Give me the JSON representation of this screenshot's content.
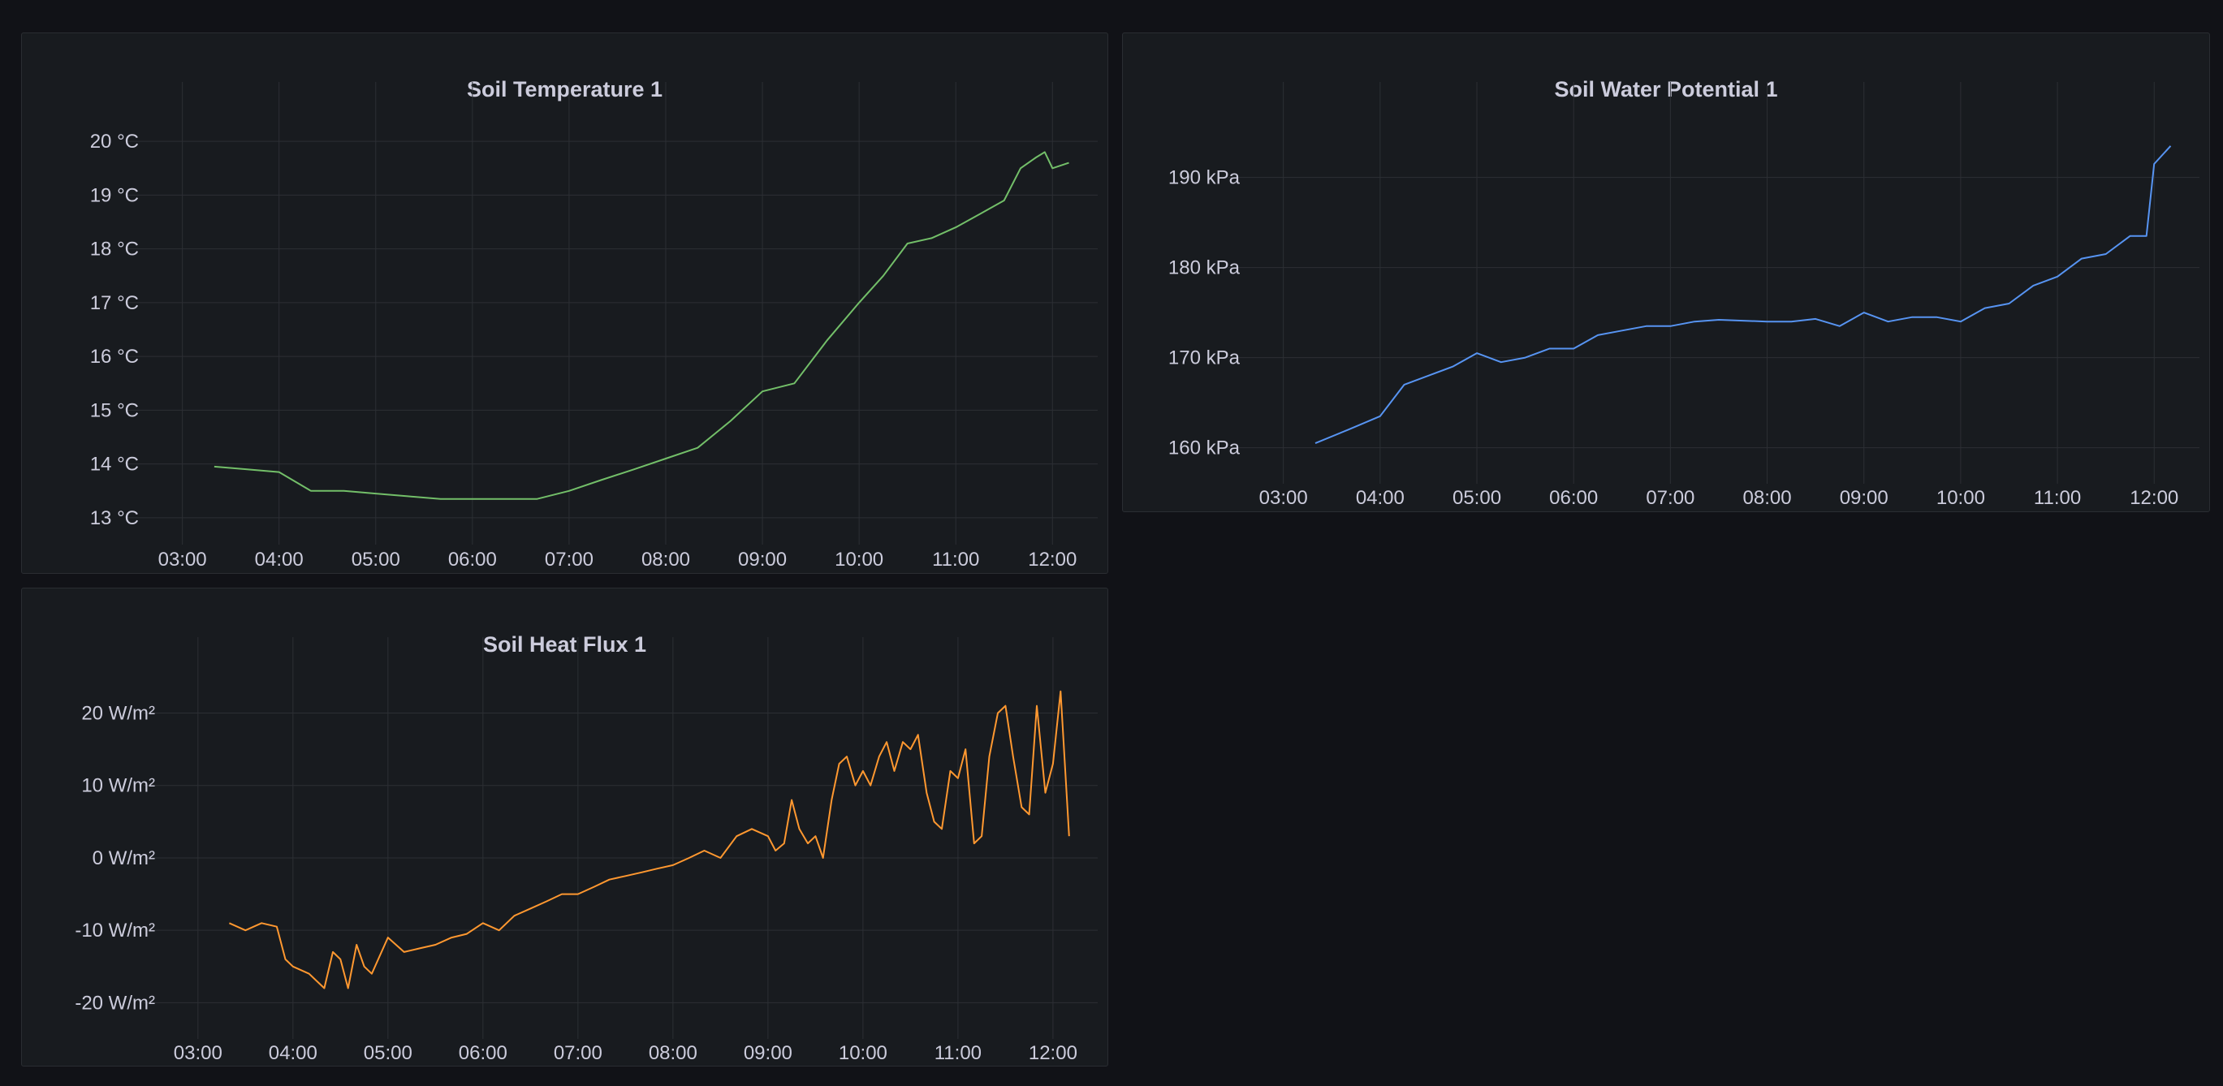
{
  "dashboard": {
    "panels": [
      {
        "id": "temp",
        "title": "Soil Temperature 1"
      },
      {
        "id": "water",
        "title": "Soil Water Potential 1"
      },
      {
        "id": "flux",
        "title": "Soil Heat Flux 1"
      }
    ]
  },
  "chart_data": [
    {
      "type": "line",
      "title": "Soil Temperature 1",
      "unit": "°C",
      "x_ticks": [
        "03:00",
        "04:00",
        "05:00",
        "06:00",
        "07:00",
        "08:00",
        "09:00",
        "10:00",
        "11:00",
        "12:00"
      ],
      "y_ticks": [
        "13 °C",
        "14 °C",
        "15 °C",
        "16 °C",
        "17 °C",
        "18 °C",
        "19 °C",
        "20 °C"
      ],
      "xlim": [
        2.6,
        12.3
      ],
      "ylim": [
        12.5,
        20.5
      ],
      "grid": true,
      "color": "#73bf69",
      "series": [
        {
          "x_hours": [
            3.33,
            3.67,
            4.0,
            4.33,
            4.67,
            5.0,
            5.33,
            5.67,
            6.0,
            6.33,
            6.67,
            7.0,
            7.33,
            7.67,
            8.0,
            8.33,
            8.67,
            9.0,
            9.33,
            9.67,
            10.0,
            10.25,
            10.5,
            10.75,
            11.0,
            11.25,
            11.5,
            11.67,
            11.83,
            11.92,
            12.0,
            12.17
          ],
          "values": [
            13.95,
            13.9,
            13.85,
            13.5,
            13.5,
            13.45,
            13.4,
            13.35,
            13.35,
            13.35,
            13.35,
            13.5,
            13.7,
            13.9,
            14.1,
            14.3,
            14.8,
            15.35,
            15.5,
            16.3,
            17.0,
            17.5,
            18.1,
            18.2,
            18.4,
            18.65,
            18.9,
            19.5,
            19.7,
            19.8,
            19.5,
            19.6
          ]
        }
      ]
    },
    {
      "type": "line",
      "title": "Soil Water Potential 1",
      "unit": "kPa",
      "x_ticks": [
        "03:00",
        "04:00",
        "05:00",
        "06:00",
        "07:00",
        "08:00",
        "09:00",
        "10:00",
        "11:00",
        "12:00"
      ],
      "y_ticks": [
        "160 kPa",
        "170 kPa",
        "180 kPa",
        "190 kPa"
      ],
      "xlim": [
        2.6,
        12.3
      ],
      "ylim": [
        156,
        197
      ],
      "grid": true,
      "color": "#5794f2",
      "series": [
        {
          "x_hours": [
            3.33,
            3.67,
            4.0,
            4.25,
            4.5,
            4.75,
            5.0,
            5.25,
            5.5,
            5.75,
            6.0,
            6.25,
            6.5,
            6.75,
            7.0,
            7.25,
            7.5,
            7.75,
            8.0,
            8.25,
            8.5,
            8.75,
            9.0,
            9.25,
            9.5,
            9.75,
            10.0,
            10.25,
            10.5,
            10.75,
            11.0,
            11.25,
            11.5,
            11.75,
            11.92,
            12.0,
            12.17
          ],
          "values": [
            160.5,
            162,
            163.5,
            167,
            168,
            169,
            170.5,
            169.5,
            170,
            171,
            171,
            172.5,
            173,
            173.5,
            173.5,
            174,
            174.2,
            174.1,
            174,
            174,
            174.3,
            173.5,
            175,
            174,
            174.5,
            174.5,
            174,
            175.5,
            176,
            178,
            179,
            181,
            181.5,
            183.5,
            183.5,
            191.5,
            193.5
          ]
        }
      ]
    },
    {
      "type": "line",
      "title": "Soil Heat Flux 1",
      "unit": "W/m²",
      "x_ticks": [
        "03:00",
        "04:00",
        "05:00",
        "06:00",
        "07:00",
        "08:00",
        "09:00",
        "10:00",
        "11:00",
        "12:00"
      ],
      "y_ticks": [
        "-20 W/m²",
        "-10 W/m²",
        "0 W/m²",
        "10 W/m²",
        "20 W/m²"
      ],
      "xlim": [
        2.6,
        12.3
      ],
      "ylim": [
        -25,
        26
      ],
      "grid": true,
      "color": "#ff9830",
      "series": [
        {
          "x_hours": [
            3.33,
            3.5,
            3.67,
            3.83,
            3.92,
            4.0,
            4.17,
            4.33,
            4.42,
            4.5,
            4.58,
            4.67,
            4.75,
            4.83,
            5.0,
            5.17,
            5.33,
            5.5,
            5.67,
            5.83,
            6.0,
            6.17,
            6.33,
            6.5,
            6.67,
            6.83,
            7.0,
            7.17,
            7.33,
            7.5,
            7.67,
            7.83,
            8.0,
            8.17,
            8.33,
            8.5,
            8.67,
            8.83,
            9.0,
            9.08,
            9.17,
            9.25,
            9.33,
            9.42,
            9.5,
            9.58,
            9.67,
            9.75,
            9.83,
            9.92,
            10.0,
            10.08,
            10.17,
            10.25,
            10.33,
            10.42,
            10.5,
            10.58,
            10.67,
            10.75,
            10.83,
            10.92,
            11.0,
            11.08,
            11.17,
            11.25,
            11.33,
            11.42,
            11.5,
            11.58,
            11.67,
            11.75,
            11.83,
            11.92,
            12.0,
            12.08,
            12.17
          ],
          "values": [
            -9,
            -10,
            -9,
            -9.5,
            -14,
            -15,
            -16,
            -18,
            -13,
            -14,
            -18,
            -12,
            -15,
            -16,
            -11,
            -13,
            -12.5,
            -12,
            -11,
            -10.5,
            -9,
            -10,
            -8,
            -7,
            -6,
            -5,
            -5,
            -4,
            -3,
            -2.5,
            -2,
            -1.5,
            -1,
            0,
            1,
            0,
            3,
            4,
            3,
            1,
            2,
            8,
            4,
            2,
            3,
            0,
            8,
            13,
            14,
            10,
            12,
            10,
            14,
            16,
            12,
            16,
            15,
            17,
            9,
            5,
            4,
            12,
            11,
            15,
            2,
            3,
            14,
            20,
            21,
            14,
            7,
            6,
            21,
            9,
            13,
            23,
            3
          ]
        }
      ]
    }
  ]
}
